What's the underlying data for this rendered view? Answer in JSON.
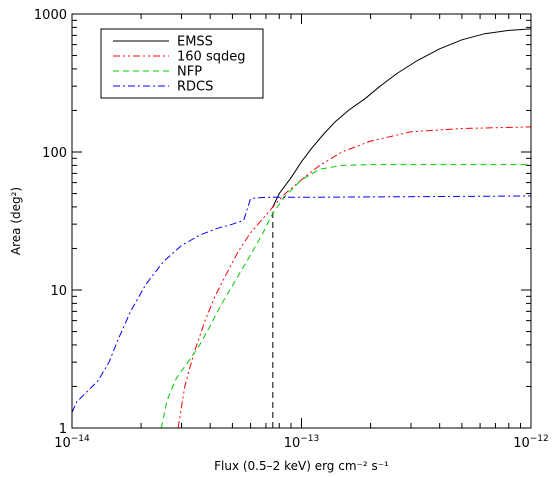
{
  "chart_data": {
    "type": "line",
    "xlabel": "Flux (0.5–2 keV) erg cm⁻² s⁻¹",
    "ylabel": "Area (deg²)",
    "xscale": "log",
    "yscale": "log",
    "xlim": [
      1e-14,
      1e-12
    ],
    "ylim": [
      1,
      1000
    ],
    "x_ticks": [
      {
        "value": 1e-14,
        "base": "10",
        "exp": "−14"
      },
      {
        "value": 1e-13,
        "base": "10",
        "exp": "−13"
      },
      {
        "value": 1e-12,
        "base": "10",
        "exp": "−12"
      }
    ],
    "y_ticks": [
      {
        "value": 1,
        "label": "1"
      },
      {
        "value": 10,
        "label": "10"
      },
      {
        "value": 100,
        "label": "100"
      },
      {
        "value": 1000,
        "label": "1000"
      }
    ],
    "grid": false,
    "legend_position": "top-left",
    "series": [
      {
        "name": "EMSS",
        "color": "#000000",
        "dash": "solid",
        "points": [
          [
            7.5e-14,
            40
          ],
          [
            8e-14,
            50
          ],
          [
            9e-14,
            65
          ],
          [
            1e-13,
            85
          ],
          [
            1.1e-13,
            105
          ],
          [
            1.25e-13,
            135
          ],
          [
            1.4e-13,
            165
          ],
          [
            1.6e-13,
            200
          ],
          [
            1.9e-13,
            245
          ],
          [
            2.2e-13,
            300
          ],
          [
            2.6e-13,
            370
          ],
          [
            3.2e-13,
            460
          ],
          [
            4e-13,
            560
          ],
          [
            5e-13,
            650
          ],
          [
            6.3e-13,
            720
          ],
          [
            8e-13,
            760
          ],
          [
            1e-12,
            780
          ]
        ]
      },
      {
        "name": "160 sqdeg",
        "color": "#ff0000",
        "dash": "dash-dot-dot",
        "points": [
          [
            2.9e-14,
            1
          ],
          [
            3.1e-14,
            2
          ],
          [
            3.4e-14,
            3.5
          ],
          [
            3.8e-14,
            6
          ],
          [
            4.2e-14,
            9
          ],
          [
            4.7e-14,
            13
          ],
          [
            5.3e-14,
            19
          ],
          [
            6e-14,
            26
          ],
          [
            6.8e-14,
            33
          ],
          [
            7.5e-14,
            40
          ],
          [
            8.5e-14,
            50
          ],
          [
            1e-13,
            63
          ],
          [
            1.2e-13,
            80
          ],
          [
            1.5e-13,
            100
          ],
          [
            2e-13,
            120
          ],
          [
            3e-13,
            140
          ],
          [
            5e-13,
            148
          ],
          [
            1e-12,
            152
          ]
        ]
      },
      {
        "name": "NFP",
        "color": "#00cc00",
        "dash": "dashed",
        "points": [
          [
            2.45e-14,
            1
          ],
          [
            2.6e-14,
            1.6
          ],
          [
            2.85e-14,
            2.3
          ],
          [
            3.2e-14,
            3
          ],
          [
            3.6e-14,
            4
          ],
          [
            4e-14,
            5.5
          ],
          [
            4.5e-14,
            8
          ],
          [
            5.2e-14,
            12
          ],
          [
            6e-14,
            18
          ],
          [
            6.8e-14,
            26
          ],
          [
            7.5e-14,
            36
          ],
          [
            8.5e-14,
            48
          ],
          [
            1e-13,
            63
          ],
          [
            1.2e-13,
            75
          ],
          [
            1.5e-13,
            80
          ],
          [
            2e-13,
            81
          ],
          [
            1e-12,
            81
          ]
        ]
      },
      {
        "name": "RDCS",
        "color": "#0000ff",
        "dash": "dash-dot",
        "points": [
          [
            1e-14,
            1.3
          ],
          [
            1.05e-14,
            1.55
          ],
          [
            1.15e-14,
            1.8
          ],
          [
            1.3e-14,
            2.2
          ],
          [
            1.45e-14,
            3
          ],
          [
            1.6e-14,
            4.5
          ],
          [
            1.8e-14,
            7
          ],
          [
            2.1e-14,
            11
          ],
          [
            2.5e-14,
            16
          ],
          [
            3e-14,
            21
          ],
          [
            3.6e-14,
            25
          ],
          [
            4.3e-14,
            28
          ],
          [
            5e-14,
            30
          ],
          [
            5.6e-14,
            32
          ],
          [
            6e-14,
            46
          ],
          [
            7e-14,
            47
          ],
          [
            1e-13,
            47
          ],
          [
            1e-12,
            48
          ]
        ]
      }
    ],
    "annotations": [
      {
        "type": "vertical-dashed-line",
        "x": 7.5e-14,
        "y_from": 1,
        "y_to": 40,
        "color": "#000000"
      }
    ]
  }
}
